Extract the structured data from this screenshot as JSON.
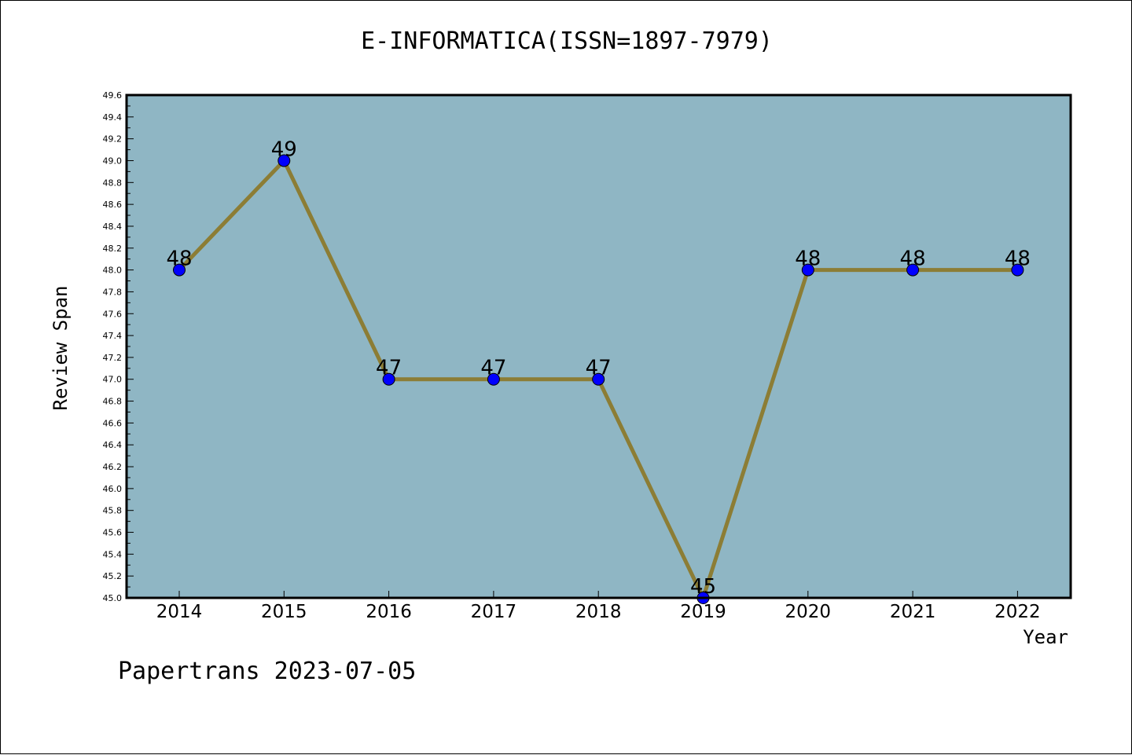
{
  "footer": {
    "text": "Papertrans 2023-07-05"
  },
  "chart_data": {
    "type": "line",
    "title": "E-INFORMATICA(ISSN=1897-7979)",
    "xlabel": "Year",
    "ylabel": "Review Span",
    "categories": [
      "2014",
      "2015",
      "2016",
      "2017",
      "2018",
      "2019",
      "2020",
      "2021",
      "2022"
    ],
    "values": [
      48,
      49,
      47,
      47,
      47,
      45,
      48,
      48,
      48
    ],
    "data_labels": [
      "48",
      "49",
      "47",
      "47",
      "47",
      "45",
      "48",
      "48",
      "48"
    ],
    "ylim": [
      45.0,
      49.6
    ],
    "yticks": [
      "45.0",
      "45.2",
      "45.4",
      "45.6",
      "45.8",
      "46.0",
      "46.2",
      "46.4",
      "46.6",
      "46.8",
      "47.0",
      "47.2",
      "47.4",
      "47.6",
      "47.8",
      "48.0",
      "48.2",
      "48.4",
      "48.6",
      "48.8",
      "49.0",
      "49.2",
      "49.4",
      "49.6"
    ],
    "grid": false,
    "colors": {
      "plot_background": "#8fb6c4",
      "line": "#8c7d35",
      "marker": "#0000ff"
    }
  }
}
